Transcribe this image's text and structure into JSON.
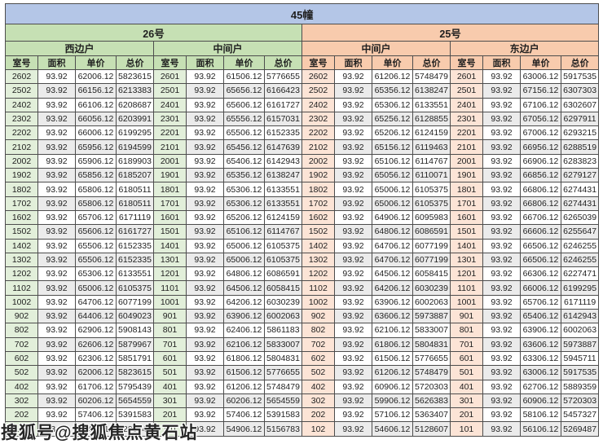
{
  "title": "45幢",
  "watermark": "搜狐号@搜狐焦点黄石站",
  "colors": {
    "title_bar": "#b4c6e7",
    "building_26_header": "#c6e0b4",
    "building_25_header": "#f8cbad",
    "room_col_26_tint": "#e2efda",
    "room_col_25_tint": "#fce4d6",
    "band_row": "#ebebeb",
    "border": "#4d4d4d"
  },
  "buildings": [
    {
      "name": "26号",
      "sides": [
        "西边户",
        "中间户"
      ]
    },
    {
      "name": "25号",
      "sides": [
        "中间户",
        "东边户"
      ]
    }
  ],
  "columns": [
    "室号",
    "面积",
    "单价",
    "总价"
  ],
  "table": {
    "rows": [
      [
        "2602",
        "93.92",
        "62006.12",
        "5823615",
        "2601",
        "93.92",
        "61506.12",
        "5776655",
        "2602",
        "93.92",
        "61206.12",
        "5748479",
        "2601",
        "93.92",
        "63006.12",
        "5917535"
      ],
      [
        "2502",
        "93.92",
        "66156.12",
        "6213383",
        "2501",
        "93.92",
        "65656.12",
        "6166423",
        "2502",
        "93.92",
        "65356.12",
        "6138247",
        "2501",
        "93.92",
        "67156.12",
        "6307303"
      ],
      [
        "2402",
        "93.92",
        "66106.12",
        "6208687",
        "2401",
        "93.92",
        "65606.12",
        "6161727",
        "2402",
        "93.92",
        "65306.12",
        "6133551",
        "2401",
        "93.92",
        "67106.12",
        "6302607"
      ],
      [
        "2302",
        "93.92",
        "66056.12",
        "6203991",
        "2301",
        "93.92",
        "65556.12",
        "6157031",
        "2302",
        "93.92",
        "65256.12",
        "6128855",
        "2301",
        "93.92",
        "67056.12",
        "6297911"
      ],
      [
        "2202",
        "93.92",
        "66006.12",
        "6199295",
        "2201",
        "93.92",
        "65506.12",
        "6152335",
        "2202",
        "93.92",
        "65206.12",
        "6124159",
        "2201",
        "93.92",
        "67006.12",
        "6293215"
      ],
      [
        "2102",
        "93.92",
        "65956.12",
        "6194599",
        "2101",
        "93.92",
        "65456.12",
        "6147639",
        "2102",
        "93.92",
        "65156.12",
        "6119463",
        "2101",
        "93.92",
        "66956.12",
        "6288519"
      ],
      [
        "2002",
        "93.92",
        "65906.12",
        "6189903",
        "2001",
        "93.92",
        "65406.12",
        "6142943",
        "2002",
        "93.92",
        "65106.12",
        "6114767",
        "2001",
        "93.92",
        "66906.12",
        "6283823"
      ],
      [
        "1902",
        "93.92",
        "65856.12",
        "6185207",
        "1901",
        "93.92",
        "65356.12",
        "6138247",
        "1902",
        "93.92",
        "65056.12",
        "6110071",
        "1901",
        "93.92",
        "66856.12",
        "6279127"
      ],
      [
        "1802",
        "93.92",
        "65806.12",
        "6180511",
        "1801",
        "93.92",
        "65306.12",
        "6133551",
        "1802",
        "93.92",
        "65006.12",
        "6105375",
        "1801",
        "93.92",
        "66806.12",
        "6274431"
      ],
      [
        "1702",
        "93.92",
        "65806.12",
        "6180511",
        "1701",
        "93.92",
        "65306.12",
        "6133551",
        "1702",
        "93.92",
        "65006.12",
        "6105375",
        "1701",
        "93.92",
        "66806.12",
        "6274431"
      ],
      [
        "1602",
        "93.92",
        "65706.12",
        "6171119",
        "1601",
        "93.92",
        "65206.12",
        "6124159",
        "1602",
        "93.92",
        "64906.12",
        "6095983",
        "1601",
        "93.92",
        "66706.12",
        "6265039"
      ],
      [
        "1502",
        "93.92",
        "65606.12",
        "6161727",
        "1501",
        "93.92",
        "65106.12",
        "6114767",
        "1502",
        "93.92",
        "64806.12",
        "6086591",
        "1501",
        "93.92",
        "66606.12",
        "6255647"
      ],
      [
        "1402",
        "93.92",
        "65506.12",
        "6152335",
        "1401",
        "93.92",
        "65006.12",
        "6105375",
        "1402",
        "93.92",
        "64706.12",
        "6077199",
        "1401",
        "93.92",
        "66506.12",
        "6246255"
      ],
      [
        "1302",
        "93.92",
        "65506.12",
        "6152335",
        "1301",
        "93.92",
        "65006.12",
        "6105375",
        "1302",
        "93.92",
        "64706.12",
        "6077199",
        "1301",
        "93.92",
        "66506.12",
        "6246255"
      ],
      [
        "1202",
        "93.92",
        "65306.12",
        "6133551",
        "1201",
        "93.92",
        "64806.12",
        "6086591",
        "1202",
        "93.92",
        "64506.12",
        "6058415",
        "1201",
        "93.92",
        "66306.12",
        "6227471"
      ],
      [
        "1102",
        "93.92",
        "65006.12",
        "6105375",
        "1101",
        "93.92",
        "64506.12",
        "6058415",
        "1102",
        "93.92",
        "64206.12",
        "6030239",
        "1101",
        "93.92",
        "66006.12",
        "6199295"
      ],
      [
        "1002",
        "93.92",
        "64706.12",
        "6077199",
        "1001",
        "93.92",
        "64206.12",
        "6030239",
        "1002",
        "93.92",
        "63906.12",
        "6002063",
        "1001",
        "93.92",
        "65706.12",
        "6171119"
      ],
      [
        "902",
        "93.92",
        "64406.12",
        "6049023",
        "901",
        "93.92",
        "63906.12",
        "6002063",
        "902",
        "93.92",
        "63606.12",
        "5973887",
        "901",
        "93.92",
        "65406.12",
        "6142943"
      ],
      [
        "802",
        "93.92",
        "62906.12",
        "5908143",
        "801",
        "93.92",
        "62406.12",
        "5861183",
        "802",
        "93.92",
        "62106.12",
        "5833007",
        "801",
        "93.92",
        "63906.12",
        "6002063"
      ],
      [
        "702",
        "93.92",
        "62606.12",
        "5879967",
        "701",
        "93.92",
        "62106.12",
        "5833007",
        "702",
        "93.92",
        "61806.12",
        "5804831",
        "701",
        "93.92",
        "63606.12",
        "5973887"
      ],
      [
        "602",
        "93.92",
        "62306.12",
        "5851791",
        "601",
        "93.92",
        "61806.12",
        "5804831",
        "602",
        "93.92",
        "61506.12",
        "5776655",
        "601",
        "93.92",
        "63306.12",
        "5945711"
      ],
      [
        "502",
        "93.92",
        "62006.12",
        "5823615",
        "501",
        "93.92",
        "61506.12",
        "5776655",
        "502",
        "93.92",
        "61206.12",
        "5748479",
        "501",
        "93.92",
        "63006.12",
        "5917535"
      ],
      [
        "402",
        "93.92",
        "61706.12",
        "5795439",
        "401",
        "93.92",
        "61206.12",
        "5748479",
        "402",
        "93.92",
        "60906.12",
        "5720303",
        "401",
        "93.92",
        "62706.12",
        "5889359"
      ],
      [
        "302",
        "93.92",
        "60206.12",
        "5654559",
        "301",
        "93.92",
        "60206.12",
        "5654559",
        "302",
        "93.92",
        "59906.12",
        "5626383",
        "301",
        "93.92",
        "60906.12",
        "5720303"
      ],
      [
        "202",
        "93.92",
        "57406.12",
        "5391583",
        "201",
        "93.92",
        "57406.12",
        "5391583",
        "202",
        "93.92",
        "57106.12",
        "5363407",
        "201",
        "93.92",
        "58106.12",
        "5457327"
      ],
      [
        "102",
        "93.92",
        "55406.12",
        "5203743",
        "101",
        "93.92",
        "54906.12",
        "5156783",
        "102",
        "93.92",
        "54606.12",
        "5128607",
        "101",
        "93.92",
        "56106.12",
        "5269487"
      ]
    ]
  }
}
